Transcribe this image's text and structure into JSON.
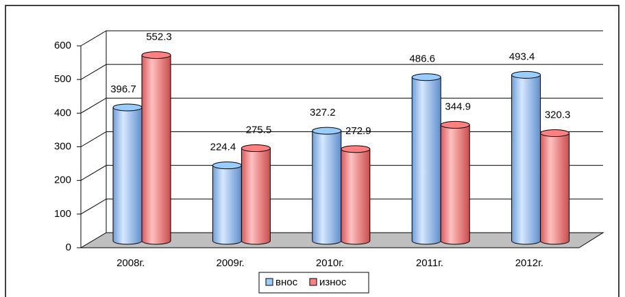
{
  "chart_data": {
    "type": "bar",
    "categories": [
      "2008г.",
      "2009г.",
      "2010г.",
      "2011г.",
      "2012г."
    ],
    "series": [
      {
        "name": "внос",
        "color": "#99ccff",
        "values": [
          396.7,
          224.4,
          327.2,
          486.6,
          493.4
        ]
      },
      {
        "name": "износ",
        "color": "#ff8080",
        "values": [
          552.3,
          275.5,
          272.9,
          344.9,
          320.3
        ]
      }
    ],
    "ylim": [
      0,
      600
    ],
    "yticks": [
      0,
      100,
      200,
      300,
      400,
      500,
      600
    ],
    "grid": true,
    "legend": "bottom"
  }
}
